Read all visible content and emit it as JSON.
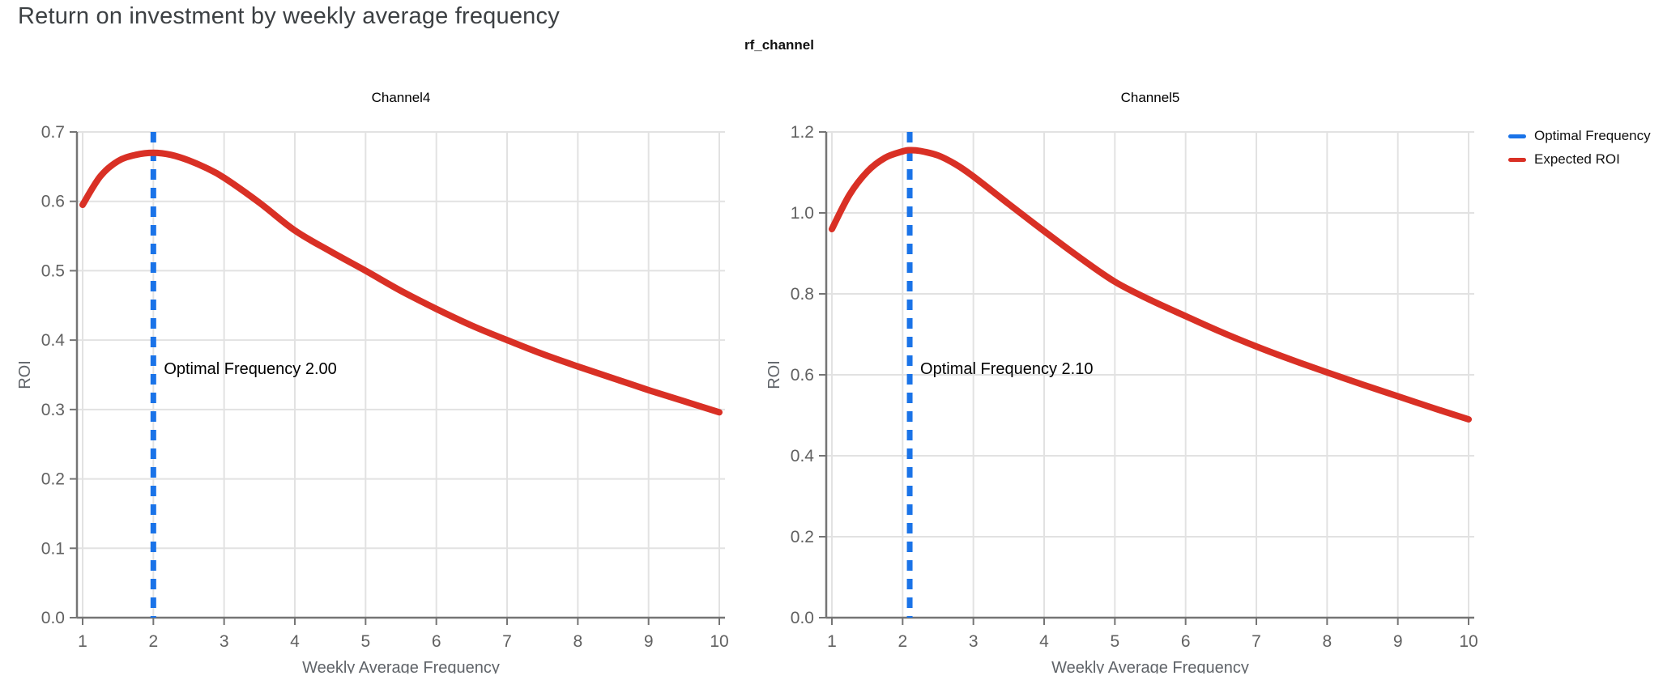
{
  "page": {
    "title": "Return on investment by weekly average frequency",
    "facet_label": "rf_channel"
  },
  "colors": {
    "expected_roi": "#d93025",
    "optimal_frequency": "#1a73e8",
    "grid": "#e2e2e2",
    "axis_line": "#757575",
    "tick_text": "#616161",
    "axis_title_text": "#5f6368",
    "page_title_text": "#3c4043",
    "annotation_text": "#000000"
  },
  "legend": {
    "items": [
      {
        "label": "Optimal Frequency",
        "color": "#1a73e8",
        "name": "optimal-frequency"
      },
      {
        "label": "Expected ROI",
        "color": "#d93025",
        "name": "expected-roi"
      }
    ]
  },
  "chart_data": [
    {
      "type": "line",
      "title": "Channel4",
      "xlabel": "Weekly Average Frequency",
      "ylabel": "ROI",
      "xlim": [
        0.92,
        10.08
      ],
      "ylim": [
        0,
        0.7
      ],
      "grid": true,
      "xticks": [
        1,
        2,
        3,
        4,
        5,
        6,
        7,
        8,
        9,
        10
      ],
      "xtick_labels": [
        "1",
        "2",
        "3",
        "4",
        "5",
        "6",
        "7",
        "8",
        "9",
        "10"
      ],
      "yticks": [
        0,
        0.1,
        0.2,
        0.3,
        0.4,
        0.5,
        0.6,
        0.7
      ],
      "ytick_labels": [
        "0.0",
        "0.1",
        "0.2",
        "0.3",
        "0.4",
        "0.5",
        "0.6",
        "0.7"
      ],
      "optimal_frequency": 2.0,
      "vline": {
        "name": "Optimal Frequency",
        "x": 2.0
      },
      "annotation": {
        "text": "Optimal Frequency  2.00"
      },
      "series": [
        {
          "name": "Expected ROI",
          "x": [
            1,
            1.25,
            1.5,
            1.75,
            2,
            2.25,
            2.5,
            2.75,
            3,
            3.5,
            4,
            4.5,
            5,
            5.5,
            6,
            6.5,
            7,
            7.5,
            8,
            8.5,
            9,
            9.5,
            10
          ],
          "y": [
            0.595,
            0.636,
            0.658,
            0.667,
            0.67,
            0.667,
            0.659,
            0.648,
            0.634,
            0.598,
            0.558,
            0.528,
            0.5,
            0.471,
            0.445,
            0.421,
            0.4,
            0.38,
            0.362,
            0.345,
            0.328,
            0.312,
            0.296
          ]
        }
      ]
    },
    {
      "type": "line",
      "title": "Channel5",
      "xlabel": "Weekly Average Frequency",
      "ylabel": "ROI",
      "xlim": [
        0.92,
        10.08
      ],
      "ylim": [
        0,
        1.2
      ],
      "grid": true,
      "xticks": [
        1,
        2,
        3,
        4,
        5,
        6,
        7,
        8,
        9,
        10
      ],
      "xtick_labels": [
        "1",
        "2",
        "3",
        "4",
        "5",
        "6",
        "7",
        "8",
        "9",
        "10"
      ],
      "yticks": [
        0,
        0.2,
        0.4,
        0.6,
        0.8,
        1.0,
        1.2
      ],
      "ytick_labels": [
        "0.0",
        "0.2",
        "0.4",
        "0.6",
        "0.8",
        "1.0",
        "1.2"
      ],
      "optimal_frequency": 2.1,
      "vline": {
        "name": "Optimal Frequency",
        "x": 2.1
      },
      "annotation": {
        "text": "Optimal Frequency  2.10"
      },
      "series": [
        {
          "name": "Expected ROI",
          "x": [
            1,
            1.25,
            1.5,
            1.75,
            2,
            2.1,
            2.25,
            2.5,
            2.75,
            3,
            3.5,
            4,
            4.5,
            5,
            5.5,
            6,
            6.5,
            7,
            7.5,
            8,
            8.5,
            9,
            9.5,
            10
          ],
          "y": [
            0.96,
            1.045,
            1.102,
            1.136,
            1.152,
            1.155,
            1.153,
            1.142,
            1.12,
            1.09,
            1.022,
            0.955,
            0.89,
            0.83,
            0.785,
            0.745,
            0.706,
            0.67,
            0.637,
            0.606,
            0.576,
            0.547,
            0.518,
            0.49
          ]
        }
      ]
    }
  ]
}
